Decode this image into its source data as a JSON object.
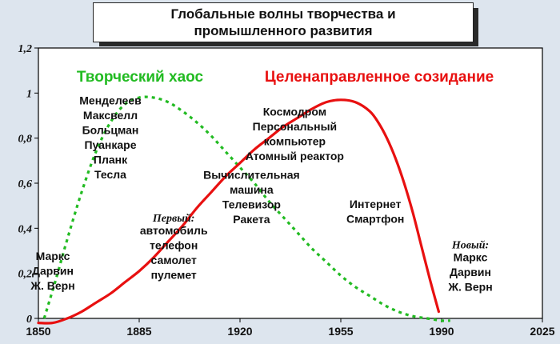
{
  "chart_data": {
    "type": "line",
    "title_lines": [
      "Глобальные волны творчества и",
      "промышленного развития"
    ],
    "x_ticks": [
      "1850",
      "1885",
      "1920",
      "1955",
      "1990",
      "2025"
    ],
    "y_ticks": [
      "0",
      "0,2",
      "0,4",
      "0,6",
      "0,8",
      "1",
      "1,2"
    ],
    "xlim": [
      1850,
      2025
    ],
    "ylim": [
      0,
      1.2
    ],
    "grid": false,
    "series": [
      {
        "name": "Творческий хаос",
        "color": "#22bb22",
        "style": "dotted",
        "x": [
          1852,
          1856,
          1860,
          1865,
          1870,
          1875,
          1880,
          1885,
          1890,
          1895,
          1900,
          1905,
          1910,
          1915,
          1920,
          1925,
          1930,
          1935,
          1940,
          1945,
          1950,
          1955,
          1960,
          1965,
          1970,
          1975,
          1980,
          1985,
          1990,
          1993
        ],
        "y": [
          0.0,
          0.17,
          0.35,
          0.56,
          0.74,
          0.87,
          0.95,
          0.98,
          0.98,
          0.96,
          0.92,
          0.87,
          0.81,
          0.74,
          0.67,
          0.6,
          0.52,
          0.45,
          0.38,
          0.31,
          0.25,
          0.19,
          0.14,
          0.1,
          0.06,
          0.03,
          0.01,
          0.0,
          -0.01,
          -0.01
        ]
      },
      {
        "name": "Целенаправленное созидание",
        "color": "#e81010",
        "style": "solid",
        "x": [
          1850,
          1855,
          1860,
          1865,
          1870,
          1875,
          1880,
          1885,
          1890,
          1895,
          1900,
          1905,
          1910,
          1915,
          1920,
          1925,
          1930,
          1935,
          1940,
          1945,
          1950,
          1955,
          1960,
          1965,
          1968,
          1971,
          1974,
          1977,
          1980,
          1983,
          1986,
          1989
        ],
        "y": [
          -0.02,
          -0.02,
          0.0,
          0.03,
          0.07,
          0.11,
          0.16,
          0.21,
          0.27,
          0.34,
          0.41,
          0.49,
          0.56,
          0.63,
          0.69,
          0.75,
          0.8,
          0.85,
          0.89,
          0.93,
          0.96,
          0.97,
          0.96,
          0.92,
          0.87,
          0.8,
          0.71,
          0.6,
          0.47,
          0.32,
          0.17,
          0.03
        ]
      }
    ],
    "series_labels": [
      "Творческий хаос",
      "Целенаправленное созидание"
    ],
    "annotations": [
      {
        "x": 1855,
        "y": 0.26,
        "italic": "",
        "lines": [
          "Маркс",
          "Дарвин",
          "Ж. Верн"
        ]
      },
      {
        "x": 1875,
        "y": 0.95,
        "italic": "",
        "lines": [
          "Менделеев",
          "Максвелл",
          "Больцман",
          "Пуанкаре",
          "Планк",
          "Тесла"
        ]
      },
      {
        "x": 1897,
        "y": 0.43,
        "italic": "Первый:",
        "lines": [
          "автомобиль",
          "телефон",
          "самолет",
          "пулемет"
        ]
      },
      {
        "x": 1924,
        "y": 0.62,
        "italic": "",
        "lines": [
          "Вычислительная",
          "машина",
          "Телевизор",
          "Ракета"
        ]
      },
      {
        "x": 1939,
        "y": 0.9,
        "italic": "",
        "lines": [
          "Космодром",
          "Персональный",
          "компьютер",
          "Атомный реактор"
        ]
      },
      {
        "x": 1967,
        "y": 0.49,
        "italic": "",
        "lines": [
          "Интернет",
          "Смартфон"
        ]
      },
      {
        "x": 2000,
        "y": 0.31,
        "italic": "Новый:",
        "lines": [
          "Маркс",
          "Дарвин",
          "Ж. Верн"
        ]
      }
    ]
  }
}
